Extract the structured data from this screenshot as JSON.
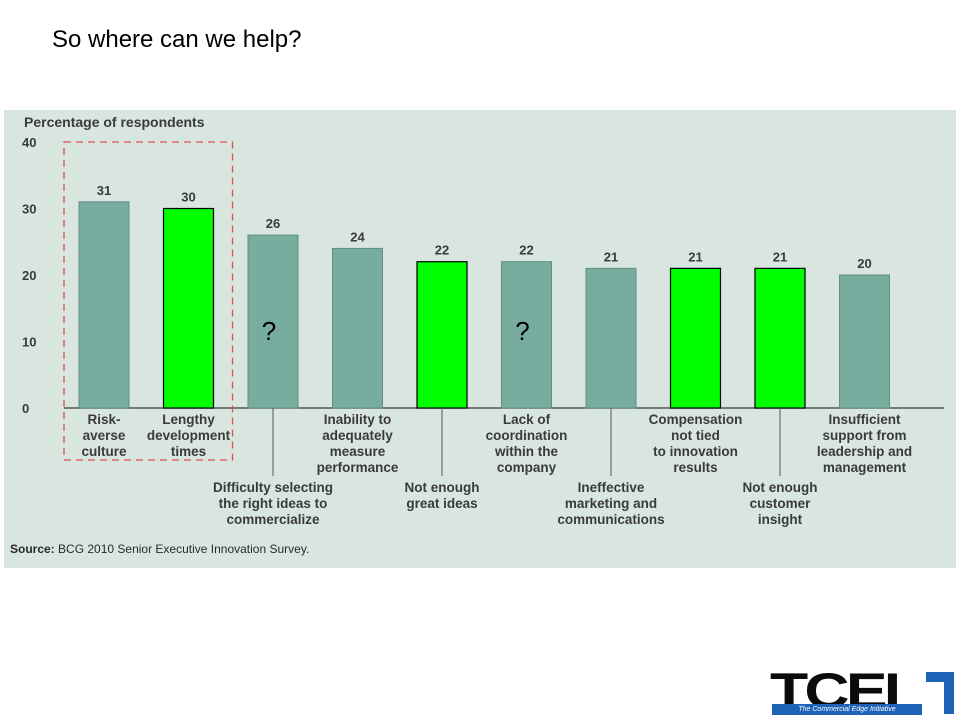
{
  "slide": {
    "title": "So where can we help?"
  },
  "chart_data": {
    "type": "bar",
    "title": "Percentage of respondents",
    "ylim": [
      0,
      40
    ],
    "yticks": [
      0,
      10,
      20,
      30,
      40
    ],
    "categories": [
      "Risk-averse culture",
      "Lengthy development times",
      "Difficulty selecting the right ideas to commercialize",
      "Inability to adequately measure performance",
      "Not enough great ideas",
      "Lack of coordination within the company",
      "Ineffective marketing and communications",
      "Compensation not tied to innovation results",
      "Not enough customer insight",
      "Insufficient support from leadership and management"
    ],
    "category_lines": [
      [
        "Risk-",
        "averse",
        "culture"
      ],
      [
        "Lengthy",
        "development",
        "times"
      ],
      [
        "Difficulty selecting",
        "the right ideas to",
        "commercialize"
      ],
      [
        "Inability to",
        "adequately",
        "measure",
        "performance"
      ],
      [
        "Not enough",
        "great ideas"
      ],
      [
        "Lack of",
        "coordination",
        "within the",
        "company"
      ],
      [
        "Ineffective",
        "marketing and",
        "communications"
      ],
      [
        "Compensation",
        "not tied",
        "to innovation",
        "results"
      ],
      [
        "Not enough",
        "customer",
        "insight"
      ],
      [
        "Insufficient",
        "support from",
        "leadership and",
        "management"
      ]
    ],
    "label_position": [
      "top",
      "top",
      "below",
      "top",
      "below",
      "top",
      "below",
      "top",
      "below",
      "top"
    ],
    "values": [
      31,
      30,
      26,
      24,
      22,
      22,
      21,
      21,
      21,
      20
    ],
    "highlighted": [
      false,
      true,
      false,
      false,
      true,
      false,
      false,
      true,
      true,
      false
    ],
    "question_marks": [
      2,
      5
    ],
    "question_mark_text": "?",
    "box_groups": [
      [
        0,
        1
      ]
    ],
    "colors": {
      "default_bar": "#76ad9e",
      "highlight_bar": "#00ff00",
      "box": "#d9534f",
      "panel_bg": "#d9e6e0"
    },
    "source_label": "Source:",
    "source_text": "BCG 2010 Senior Executive Innovation Survey."
  },
  "logo": {
    "text": "TCEI",
    "tagline": "The Commercial Edge Initiative"
  }
}
